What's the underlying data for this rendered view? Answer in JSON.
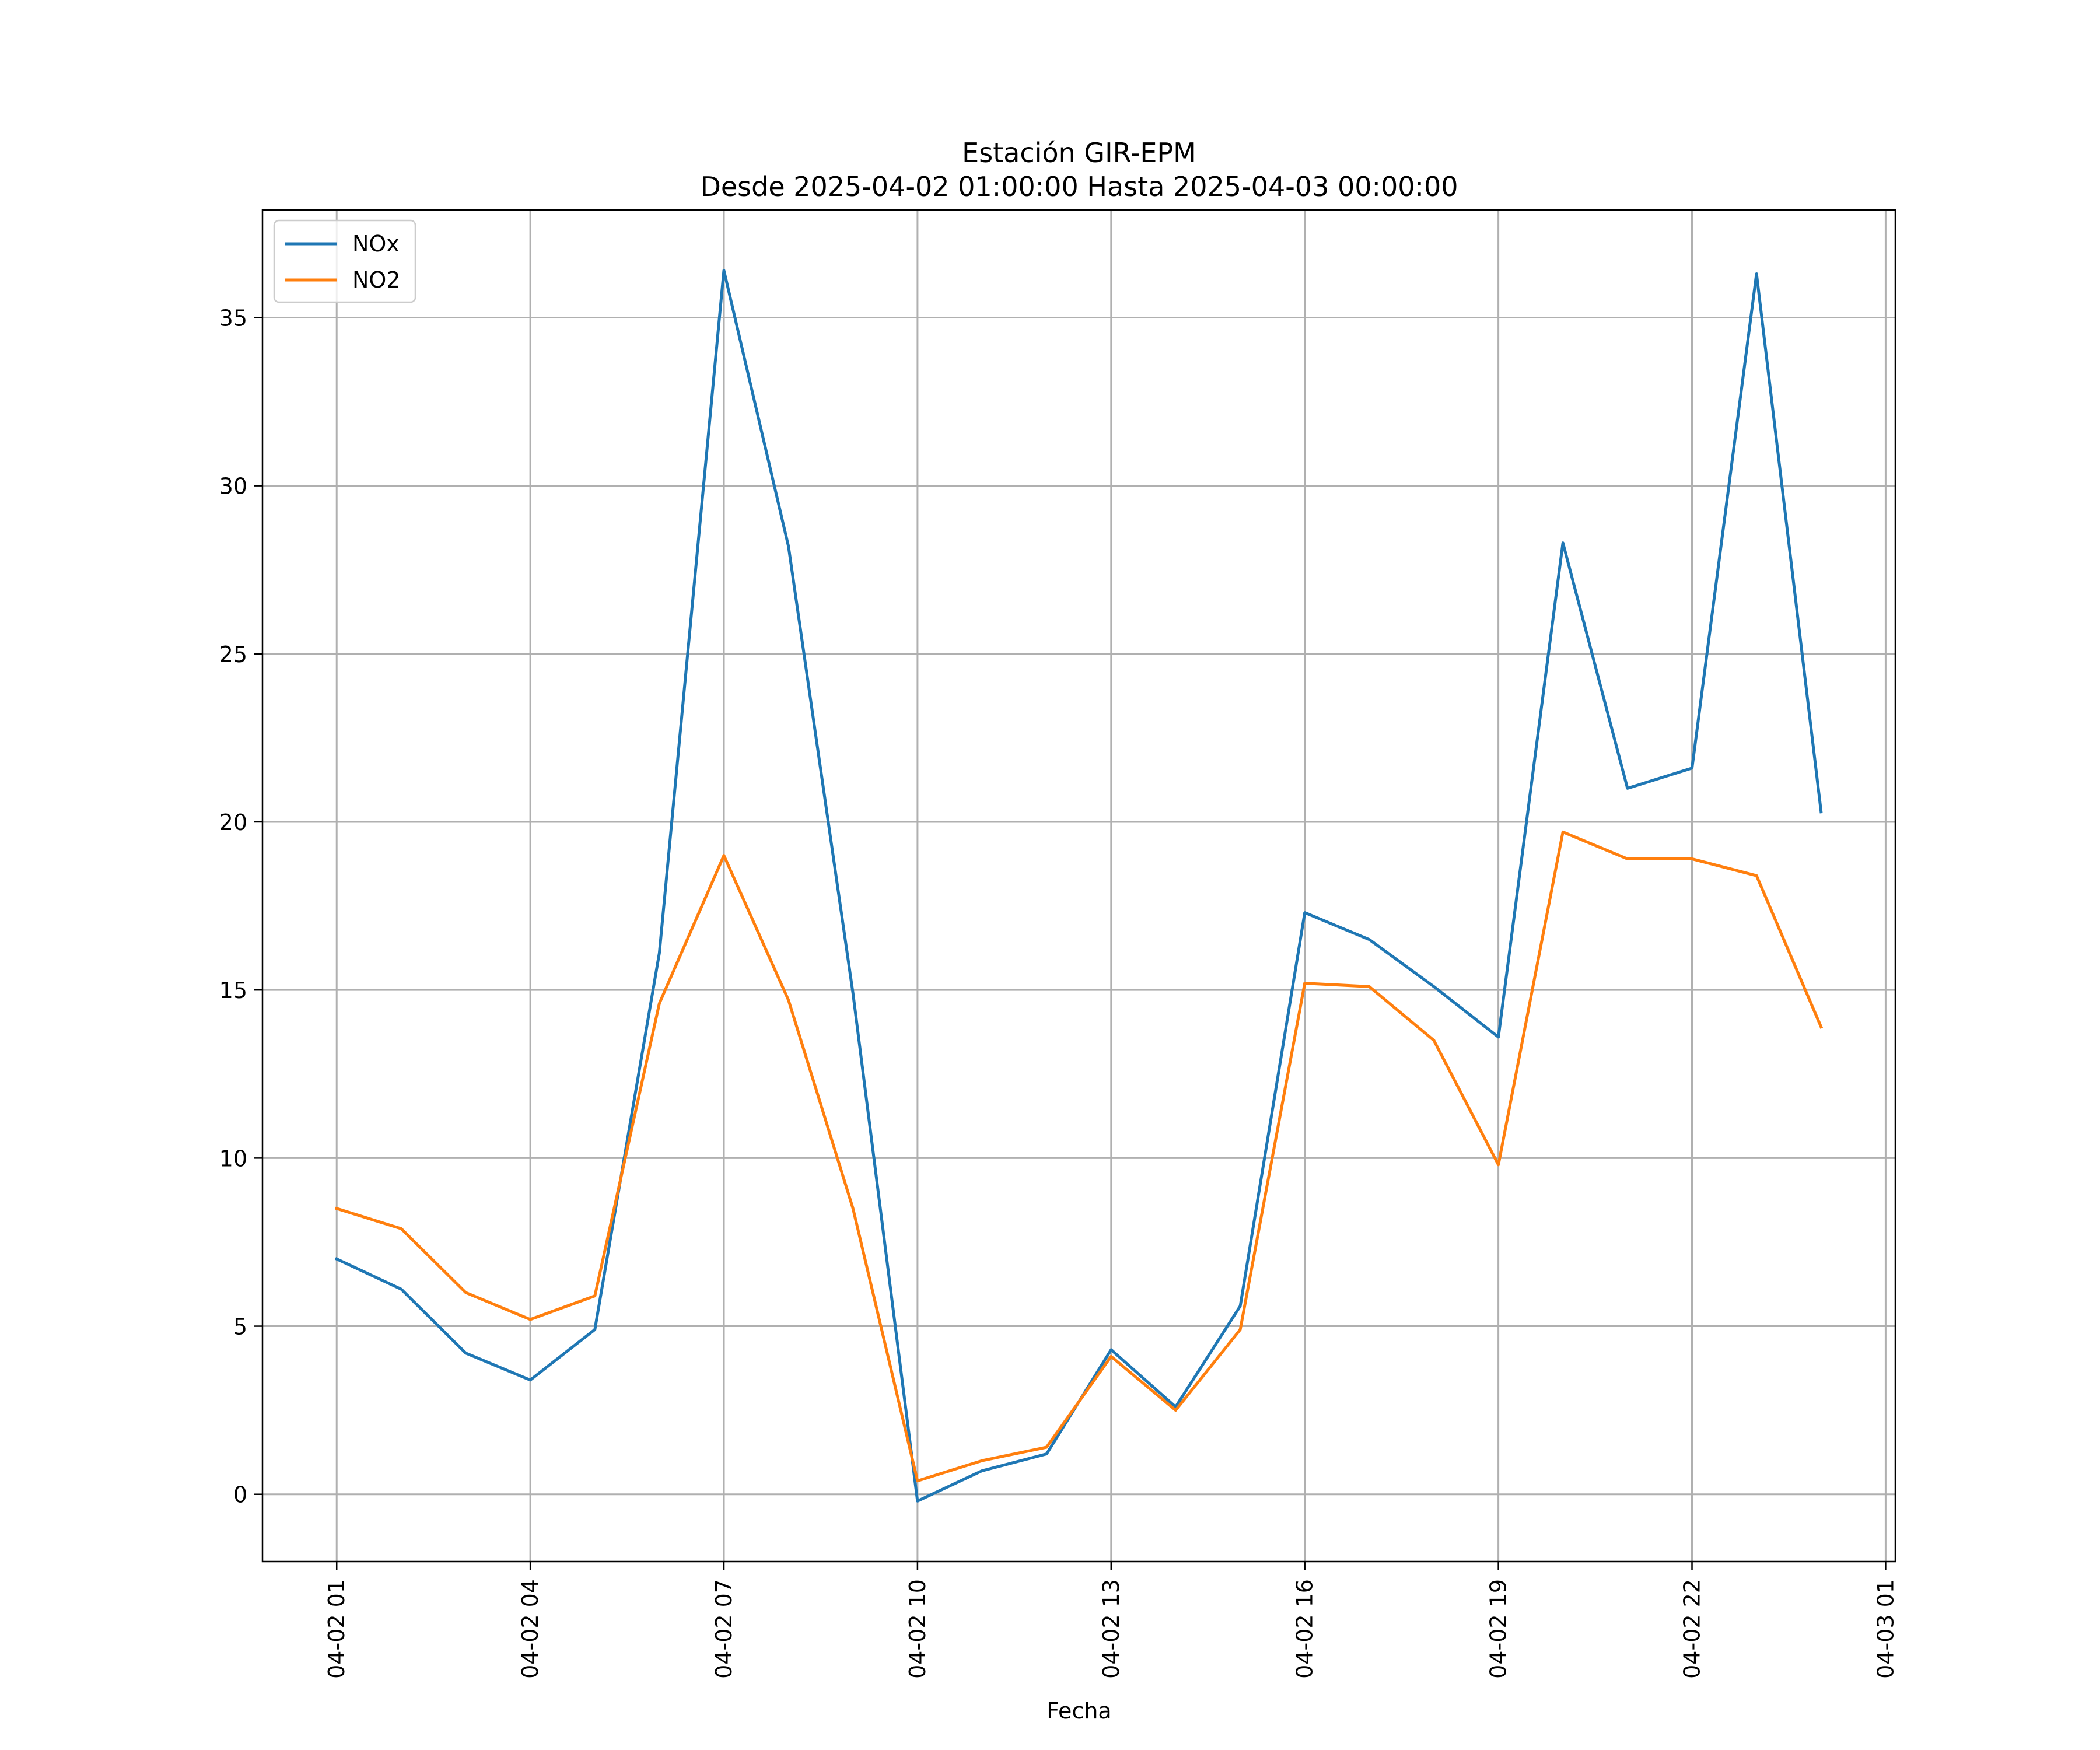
{
  "chart_data": {
    "type": "line",
    "title": "Estación GIR-EPM",
    "subtitle": "Desde 2025-04-02 01:00:00 Hasta 2025-04-03 00:00:00",
    "xlabel": "Fecha",
    "ylabel": "",
    "x": [
      "2025-04-02 01:00",
      "2025-04-02 02:00",
      "2025-04-02 03:00",
      "2025-04-02 04:00",
      "2025-04-02 05:00",
      "2025-04-02 06:00",
      "2025-04-02 07:00",
      "2025-04-02 08:00",
      "2025-04-02 09:00",
      "2025-04-02 10:00",
      "2025-04-02 11:00",
      "2025-04-02 12:00",
      "2025-04-02 13:00",
      "2025-04-02 14:00",
      "2025-04-02 15:00",
      "2025-04-02 16:00",
      "2025-04-02 17:00",
      "2025-04-02 18:00",
      "2025-04-02 19:00",
      "2025-04-02 20:00",
      "2025-04-02 21:00",
      "2025-04-02 22:00",
      "2025-04-02 23:00",
      "2025-04-03 00:00"
    ],
    "series": [
      {
        "name": "NOx",
        "color": "#1f77b4",
        "values": [
          7.0,
          6.1,
          4.2,
          3.4,
          4.9,
          16.1,
          36.4,
          28.2,
          14.9,
          -0.2,
          0.7,
          1.2,
          4.3,
          2.6,
          5.6,
          17.3,
          16.5,
          15.1,
          13.6,
          28.3,
          21.0,
          21.6,
          36.3,
          20.3
        ]
      },
      {
        "name": "NO2",
        "color": "#ff7f0e",
        "values": [
          8.5,
          7.9,
          6.0,
          5.2,
          5.9,
          14.6,
          19.0,
          14.7,
          8.5,
          0.4,
          1.0,
          1.4,
          4.1,
          2.5,
          4.9,
          15.2,
          15.1,
          13.5,
          9.8,
          19.7,
          18.9,
          18.9,
          18.4,
          13.9
        ]
      }
    ],
    "x_ticks": [
      {
        "at": "2025-04-02 01:00",
        "label": "04-02 01"
      },
      {
        "at": "2025-04-02 04:00",
        "label": "04-02 04"
      },
      {
        "at": "2025-04-02 07:00",
        "label": "04-02 07"
      },
      {
        "at": "2025-04-02 10:00",
        "label": "04-02 10"
      },
      {
        "at": "2025-04-02 13:00",
        "label": "04-02 13"
      },
      {
        "at": "2025-04-02 16:00",
        "label": "04-02 16"
      },
      {
        "at": "2025-04-02 19:00",
        "label": "04-02 19"
      },
      {
        "at": "2025-04-02 22:00",
        "label": "04-02 22"
      },
      {
        "at": "2025-04-03 01:00",
        "label": "04-03 01"
      }
    ],
    "xlim": [
      "2025-04-01 23:51",
      "2025-04-03 01:09"
    ],
    "y_ticks": [
      0,
      5,
      10,
      15,
      20,
      25,
      30,
      35
    ],
    "ylim": [
      -2.0,
      38.2
    ],
    "grid": true,
    "legend": "upper left"
  }
}
